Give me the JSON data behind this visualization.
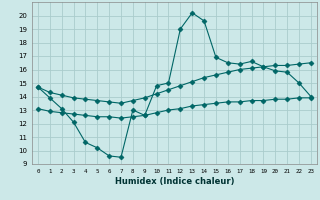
{
  "title": "",
  "xlabel": "Humidex (Indice chaleur)",
  "bg_color": "#cce8e8",
  "grid_color": "#aacccc",
  "line_color": "#006666",
  "xlim": [
    -0.5,
    23.5
  ],
  "ylim": [
    9,
    21
  ],
  "xticks": [
    0,
    1,
    2,
    3,
    4,
    5,
    6,
    7,
    8,
    9,
    10,
    11,
    12,
    13,
    14,
    15,
    16,
    17,
    18,
    19,
    20,
    21,
    22,
    23
  ],
  "yticks": [
    9,
    10,
    11,
    12,
    13,
    14,
    15,
    16,
    17,
    18,
    19,
    20
  ],
  "line1_x": [
    0,
    1,
    2,
    3,
    4,
    5,
    6,
    7,
    8,
    9,
    10,
    11,
    12,
    13,
    14,
    15,
    16,
    17,
    18,
    19,
    20,
    21,
    22,
    23
  ],
  "line1_y": [
    14.7,
    13.9,
    13.1,
    12.1,
    10.6,
    10.2,
    9.6,
    9.5,
    13.0,
    12.6,
    14.8,
    15.0,
    19.0,
    20.2,
    19.6,
    16.9,
    16.5,
    16.4,
    16.6,
    16.2,
    15.9,
    15.8,
    15.0,
    14.0
  ],
  "line2_x": [
    0,
    1,
    2,
    3,
    4,
    5,
    6,
    7,
    8,
    9,
    10,
    11,
    12,
    13,
    14,
    15,
    16,
    17,
    18,
    19,
    20,
    21,
    22,
    23
  ],
  "line2_y": [
    14.7,
    14.3,
    14.1,
    13.9,
    13.8,
    13.7,
    13.6,
    13.5,
    13.7,
    13.9,
    14.2,
    14.5,
    14.8,
    15.1,
    15.4,
    15.6,
    15.8,
    16.0,
    16.1,
    16.2,
    16.3,
    16.3,
    16.4,
    16.5
  ],
  "line3_x": [
    0,
    1,
    2,
    3,
    4,
    5,
    6,
    7,
    8,
    9,
    10,
    11,
    12,
    13,
    14,
    15,
    16,
    17,
    18,
    19,
    20,
    21,
    22,
    23
  ],
  "line3_y": [
    13.1,
    12.9,
    12.8,
    12.7,
    12.6,
    12.5,
    12.5,
    12.4,
    12.5,
    12.6,
    12.8,
    13.0,
    13.1,
    13.3,
    13.4,
    13.5,
    13.6,
    13.6,
    13.7,
    13.7,
    13.8,
    13.8,
    13.9,
    13.9
  ]
}
